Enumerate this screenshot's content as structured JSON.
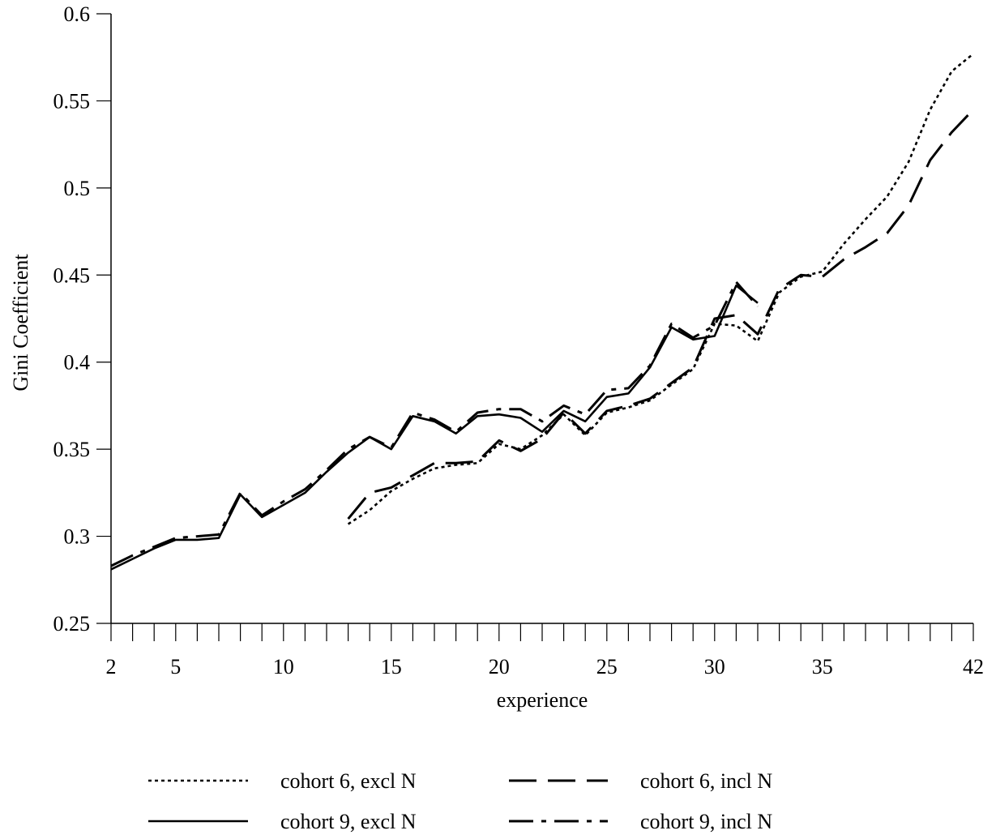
{
  "chart_data": {
    "type": "line",
    "title": "",
    "xlabel": "experience",
    "ylabel": "Gini Coefficient",
    "xlim": [
      2,
      42
    ],
    "ylim": [
      0.25,
      0.6
    ],
    "x_tick_labels": [
      2,
      5,
      10,
      15,
      20,
      25,
      30,
      35,
      42
    ],
    "y_tick_labels": [
      "0.25",
      "0.3",
      "0.35",
      "0.4",
      "0.45",
      "0.5",
      "0.55",
      "0.6"
    ],
    "grid": false,
    "legend_position": "bottom",
    "series": [
      {
        "name": "cohort 6, excl N",
        "style": "dotted",
        "color": "#000000",
        "points": [
          [
            13,
            0.307
          ],
          [
            14,
            0.315
          ],
          [
            15,
            0.326
          ],
          [
            16,
            0.333
          ],
          [
            17,
            0.339
          ],
          [
            18,
            0.341
          ],
          [
            19,
            0.342
          ],
          [
            20,
            0.353
          ],
          [
            21,
            0.35
          ],
          [
            22,
            0.358
          ],
          [
            23,
            0.37
          ],
          [
            24,
            0.358
          ],
          [
            25,
            0.371
          ],
          [
            26,
            0.374
          ],
          [
            27,
            0.378
          ],
          [
            28,
            0.387
          ],
          [
            29,
            0.396
          ],
          [
            30,
            0.422
          ],
          [
            31,
            0.421
          ],
          [
            32,
            0.412
          ],
          [
            33,
            0.44
          ],
          [
            34,
            0.449
          ],
          [
            35,
            0.452
          ],
          [
            36,
            0.468
          ],
          [
            37,
            0.482
          ],
          [
            38,
            0.495
          ],
          [
            39,
            0.515
          ],
          [
            40,
            0.545
          ],
          [
            41,
            0.567
          ],
          [
            42,
            0.577
          ]
        ]
      },
      {
        "name": "cohort 6, incl N",
        "style": "long-dash",
        "color": "#000000",
        "points": [
          [
            13,
            0.31
          ],
          [
            14,
            0.325
          ],
          [
            15,
            0.328
          ],
          [
            16,
            0.335
          ],
          [
            17,
            0.342
          ],
          [
            18,
            0.342
          ],
          [
            19,
            0.343
          ],
          [
            20,
            0.355
          ],
          [
            21,
            0.349
          ],
          [
            22,
            0.356
          ],
          [
            23,
            0.371
          ],
          [
            24,
            0.359
          ],
          [
            25,
            0.372
          ],
          [
            26,
            0.375
          ],
          [
            27,
            0.379
          ],
          [
            28,
            0.388
          ],
          [
            29,
            0.397
          ],
          [
            30,
            0.425
          ],
          [
            31,
            0.427
          ],
          [
            32,
            0.416
          ],
          [
            33,
            0.442
          ],
          [
            34,
            0.45
          ],
          [
            35,
            0.449
          ],
          [
            36,
            0.459
          ],
          [
            37,
            0.466
          ],
          [
            38,
            0.474
          ],
          [
            39,
            0.49
          ],
          [
            40,
            0.516
          ],
          [
            41,
            0.532
          ],
          [
            42,
            0.545
          ]
        ]
      },
      {
        "name": "cohort 9, excl N",
        "style": "solid",
        "color": "#000000",
        "points": [
          [
            2,
            0.281
          ],
          [
            3,
            0.287
          ],
          [
            4,
            0.293
          ],
          [
            5,
            0.298
          ],
          [
            6,
            0.298
          ],
          [
            7,
            0.299
          ],
          [
            8,
            0.324
          ],
          [
            9,
            0.311
          ],
          [
            10,
            0.318
          ],
          [
            11,
            0.325
          ],
          [
            12,
            0.337
          ],
          [
            13,
            0.348
          ],
          [
            14,
            0.357
          ],
          [
            15,
            0.35
          ],
          [
            16,
            0.369
          ],
          [
            17,
            0.366
          ],
          [
            18,
            0.359
          ],
          [
            19,
            0.369
          ],
          [
            20,
            0.37
          ],
          [
            21,
            0.368
          ],
          [
            22,
            0.36
          ],
          [
            23,
            0.372
          ],
          [
            24,
            0.366
          ],
          [
            25,
            0.38
          ],
          [
            26,
            0.382
          ],
          [
            27,
            0.397
          ],
          [
            28,
            0.42
          ],
          [
            29,
            0.413
          ],
          [
            30,
            0.415
          ],
          [
            31,
            0.444
          ],
          [
            32,
            0.434
          ]
        ]
      },
      {
        "name": "cohort 9, incl N",
        "style": "dash-dot",
        "color": "#000000",
        "points": [
          [
            2,
            0.283
          ],
          [
            3,
            0.289
          ],
          [
            4,
            0.294
          ],
          [
            5,
            0.299
          ],
          [
            6,
            0.3
          ],
          [
            7,
            0.301
          ],
          [
            8,
            0.325
          ],
          [
            9,
            0.312
          ],
          [
            10,
            0.32
          ],
          [
            11,
            0.327
          ],
          [
            12,
            0.338
          ],
          [
            13,
            0.35
          ],
          [
            14,
            0.357
          ],
          [
            15,
            0.351
          ],
          [
            16,
            0.371
          ],
          [
            17,
            0.367
          ],
          [
            18,
            0.36
          ],
          [
            19,
            0.371
          ],
          [
            20,
            0.373
          ],
          [
            21,
            0.373
          ],
          [
            22,
            0.366
          ],
          [
            23,
            0.375
          ],
          [
            24,
            0.37
          ],
          [
            25,
            0.384
          ],
          [
            26,
            0.385
          ],
          [
            27,
            0.398
          ],
          [
            28,
            0.422
          ],
          [
            29,
            0.414
          ],
          [
            30,
            0.421
          ],
          [
            31,
            0.446
          ],
          [
            32,
            0.432
          ]
        ]
      }
    ]
  }
}
